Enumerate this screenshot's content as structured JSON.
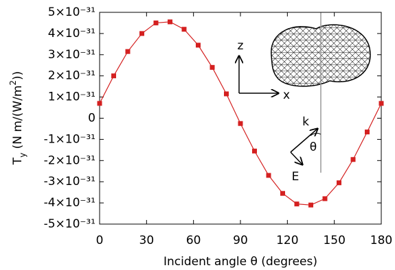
{
  "chart_data": {
    "type": "line",
    "x_label": "Incident angle θ (degrees)",
    "y_label": [
      "T",
      "y",
      " (N m/(W/m",
      "2",
      "))"
    ],
    "x": [
      0,
      9,
      18,
      27,
      36,
      45,
      54,
      63,
      72,
      81,
      90,
      99,
      108,
      117,
      126,
      135,
      144,
      153,
      162,
      171,
      180
    ],
    "series": [
      {
        "color": "#d42020",
        "values": [
          7e-32,
          2e-31,
          3.15e-31,
          4e-31,
          4.5e-31,
          4.55e-31,
          4.2e-31,
          3.45e-31,
          2.4e-31,
          1.15e-31,
          -2.5e-32,
          -1.55e-31,
          -2.7e-31,
          -3.55e-31,
          -4.05e-31,
          -4.1e-31,
          -3.8e-31,
          -3.05e-31,
          -1.95e-31,
          -6.5e-32,
          7e-32
        ]
      }
    ],
    "xlim": [
      0,
      180
    ],
    "xticks": [
      0,
      30,
      60,
      90,
      120,
      150,
      180
    ],
    "ylim": [
      -5e-31,
      5e-31
    ],
    "yticks": [
      {
        "value": -5e-31,
        "label": "-5×10⁻³¹"
      },
      {
        "value": -4e-31,
        "label": "-4×10⁻³¹"
      },
      {
        "value": -3e-31,
        "label": "-3×10⁻³¹"
      },
      {
        "value": -2e-31,
        "label": "-2×10⁻³¹"
      },
      {
        "value": -1e-31,
        "label": "-1×10⁻³¹"
      },
      0,
      {
        "value": 1e-31,
        "label": "1×10⁻³¹"
      },
      {
        "value": 2e-31,
        "label": "2×10⁻³¹"
      },
      {
        "value": 3e-31,
        "label": "3×10⁻³¹"
      },
      {
        "value": 4e-31,
        "label": "4×10⁻³¹"
      },
      {
        "value": 5e-31,
        "label": "5×10⁻³¹"
      }
    ],
    "annotations": {
      "z": "z",
      "x": "x",
      "k": "k",
      "theta": "θ",
      "E": "E"
    }
  }
}
